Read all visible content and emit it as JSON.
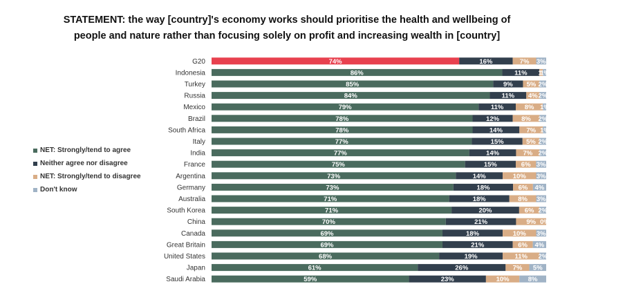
{
  "title": {
    "line1": "STATEMENT: the way [country]'s economy works should prioritise the health and wellbeing of",
    "line2": "people and nature rather than focusing solely on profit and increasing wealth in [country]"
  },
  "colors": {
    "agree": "#4a6b5e",
    "agree_highlight": "#e8414f",
    "neither": "#323f4d",
    "disagree": "#d9ad86",
    "dontknow": "#a0b3c6"
  },
  "chart_data": {
    "type": "bar",
    "orientation": "horizontal",
    "stacked": true,
    "legend_position": "left",
    "categories": [
      "G20",
      "Indonesia",
      "Turkey",
      "Russia",
      "Mexico",
      "Brazil",
      "South Africa",
      "Italy",
      "India",
      "France",
      "Argentina",
      "Germany",
      "Australia",
      "South Korea",
      "China",
      "Canada",
      "Great Britain",
      "United States",
      "Japan",
      "Saudi Arabia"
    ],
    "series": [
      {
        "name": "NET: Strongly/tend to agree",
        "values": [
          74,
          86,
          85,
          84,
          79,
          78,
          78,
          77,
          77,
          75,
          73,
          73,
          71,
          71,
          70,
          69,
          69,
          68,
          61,
          59
        ]
      },
      {
        "name": "Neither agree nor disagree",
        "values": [
          16,
          11,
          9,
          11,
          11,
          12,
          14,
          15,
          14,
          15,
          14,
          18,
          18,
          20,
          21,
          18,
          21,
          19,
          26,
          23
        ]
      },
      {
        "name": "NET: Strongly/tend to disagree",
        "values": [
          7,
          1,
          5,
          4,
          8,
          8,
          7,
          5,
          7,
          6,
          10,
          6,
          8,
          6,
          9,
          10,
          6,
          11,
          7,
          10
        ]
      },
      {
        "name": "Don't know",
        "values": [
          3,
          1,
          2,
          2,
          1,
          2,
          1,
          2,
          2,
          3,
          3,
          4,
          3,
          2,
          0,
          3,
          4,
          2,
          5,
          8
        ]
      }
    ],
    "label_suffix": "%"
  }
}
